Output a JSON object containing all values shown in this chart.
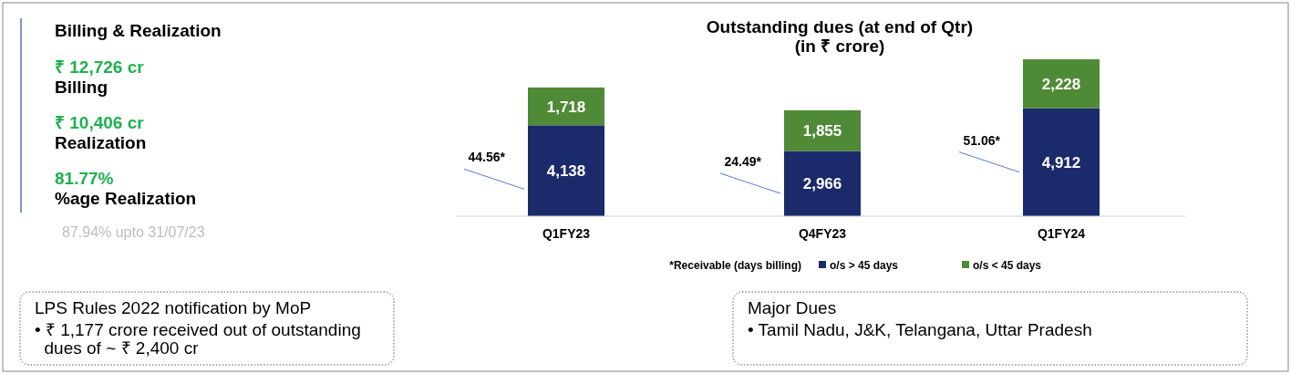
{
  "chart_data": [
    {
      "type": "other",
      "title": "Billing & Realization",
      "annotations": [
        "₹ 12,726 cr",
        "Billing",
        "₹ 10,406 cr",
        "Realization",
        "81.77%",
        "%age Realization",
        "87.94% upto 31/07/23"
      ]
    },
    {
      "type": "bar",
      "title": "Outstanding dues (at end of Qtr)",
      "subtitle": "(in ₹ crore)",
      "categories": [
        "Q1FY23",
        "Q4FY23",
        "Q1FY24"
      ],
      "stacked": true,
      "legend": "bottom",
      "series": [
        {
          "name": "o/s > 45 days",
          "color": "#1b2a6b",
          "values": [
            4138,
            2966,
            4912
          ],
          "value_labels": [
            "4,138",
            "2,966",
            "4,912"
          ]
        },
        {
          "name": "o/s < 45 days",
          "color": "#4f8a36",
          "values": [
            1718,
            1855,
            2228
          ],
          "value_labels": [
            "1,718",
            "1,855",
            "2,228"
          ]
        }
      ],
      "annotations": [
        "44.56*",
        "24.49*",
        "51.06*",
        "*Receivable (days billing)"
      ]
    },
    {
      "type": "other",
      "title": "LPS Rules 2022 notification by MoP",
      "annotations": [
        "• ₹ 1,177 crore received out of outstanding dues of ~ ₹ 2,400 cr"
      ]
    },
    {
      "type": "other",
      "title": "Major Dues",
      "annotations": [
        "• Tamil Nadu, J&K, Telangana, Uttar Pradesh"
      ]
    }
  ]
}
